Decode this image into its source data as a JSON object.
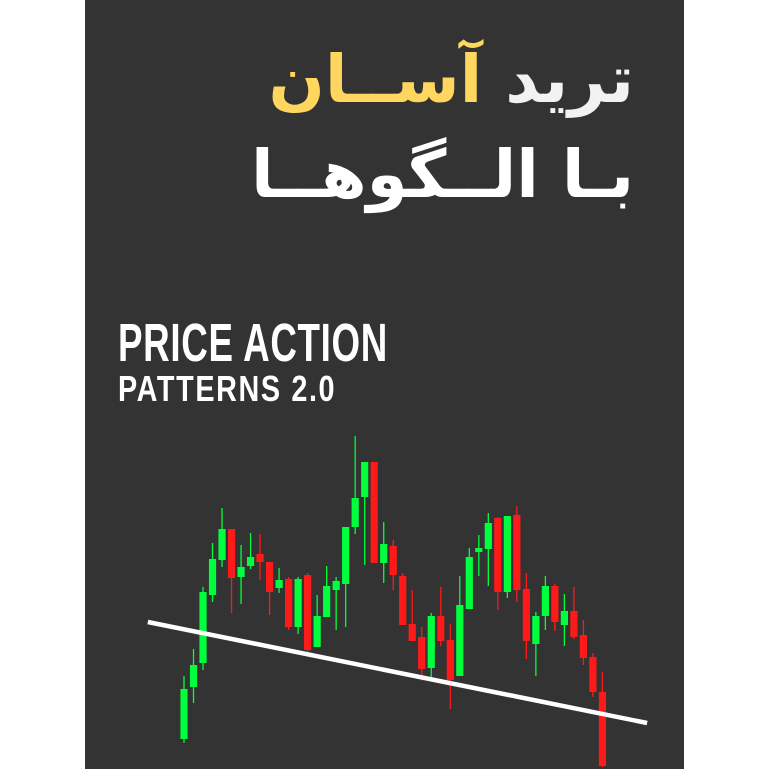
{
  "cover": {
    "title_line1_word1": "ترید",
    "title_line1_word2": "آســان",
    "title_line2": "بـا الــگوهــا",
    "subtitle_line1": "PRICE ACTION",
    "subtitle_line2": "PATTERNS 2.0",
    "colors": {
      "background": "#333333",
      "accent": "#ffd75e",
      "text": "#ffffff",
      "bullish": "#00ff3c",
      "bearish": "#ff1a1a",
      "neckline": "#ffffff"
    }
  },
  "chart_data": {
    "type": "candlestick",
    "title": "",
    "xlabel": "",
    "ylabel": "",
    "axes_visible": false,
    "grid": false,
    "candles": [
      [
        30,
        93,
        26,
        80
      ],
      [
        82,
        120,
        66,
        104
      ],
      [
        106,
        182,
        99,
        177
      ],
      [
        174,
        226,
        167,
        210
      ],
      [
        209,
        261,
        202,
        240
      ],
      [
        240,
        240,
        156,
        191
      ],
      [
        192,
        224,
        165,
        202
      ],
      [
        203,
        236,
        200,
        212
      ],
      [
        215,
        235,
        189,
        207
      ],
      [
        207,
        207,
        154,
        177
      ],
      [
        181,
        201,
        176,
        189
      ],
      [
        190,
        192,
        139,
        142
      ],
      [
        142,
        192,
        135,
        190
      ],
      [
        194,
        196,
        117,
        119
      ],
      [
        122,
        174,
        122,
        153
      ],
      [
        152,
        203,
        152,
        183
      ],
      [
        179,
        192,
        139,
        188
      ],
      [
        185,
        242,
        142,
        242
      ],
      [
        242,
        333,
        235,
        271
      ],
      [
        272,
        307,
        204,
        307
      ],
      [
        307,
        307,
        206,
        206
      ],
      [
        206,
        247,
        186,
        225
      ],
      [
        223,
        229,
        179,
        194
      ],
      [
        193,
        196,
        144,
        144
      ],
      [
        145,
        179,
        128,
        128
      ],
      [
        132,
        142,
        88,
        100
      ],
      [
        101,
        156,
        92,
        153
      ],
      [
        153,
        182,
        123,
        128
      ],
      [
        129,
        145,
        60,
        89
      ],
      [
        93,
        193,
        93,
        164
      ],
      [
        160,
        221,
        160,
        212
      ],
      [
        217,
        234,
        193,
        221
      ],
      [
        220,
        256,
        183,
        246
      ],
      [
        251,
        252,
        159,
        177
      ],
      [
        177,
        253,
        171,
        253
      ],
      [
        254,
        263,
        167,
        179
      ],
      [
        180,
        196,
        110,
        128
      ],
      [
        125,
        157,
        93,
        153
      ],
      [
        153,
        193,
        139,
        183
      ],
      [
        183,
        185,
        138,
        147
      ],
      [
        144,
        175,
        123,
        158
      ],
      [
        158,
        182,
        130,
        132
      ],
      [
        134,
        149,
        104,
        111
      ],
      [
        112,
        116,
        72,
        77
      ],
      [
        77,
        97,
        2,
        3
      ]
    ],
    "candle_fields": [
      "open",
      "high",
      "low",
      "close"
    ],
    "neckline": {
      "start": [
        -3.8,
        147
      ],
      "end": [
        48.7,
        46
      ]
    },
    "pattern": "head and shoulders"
  }
}
